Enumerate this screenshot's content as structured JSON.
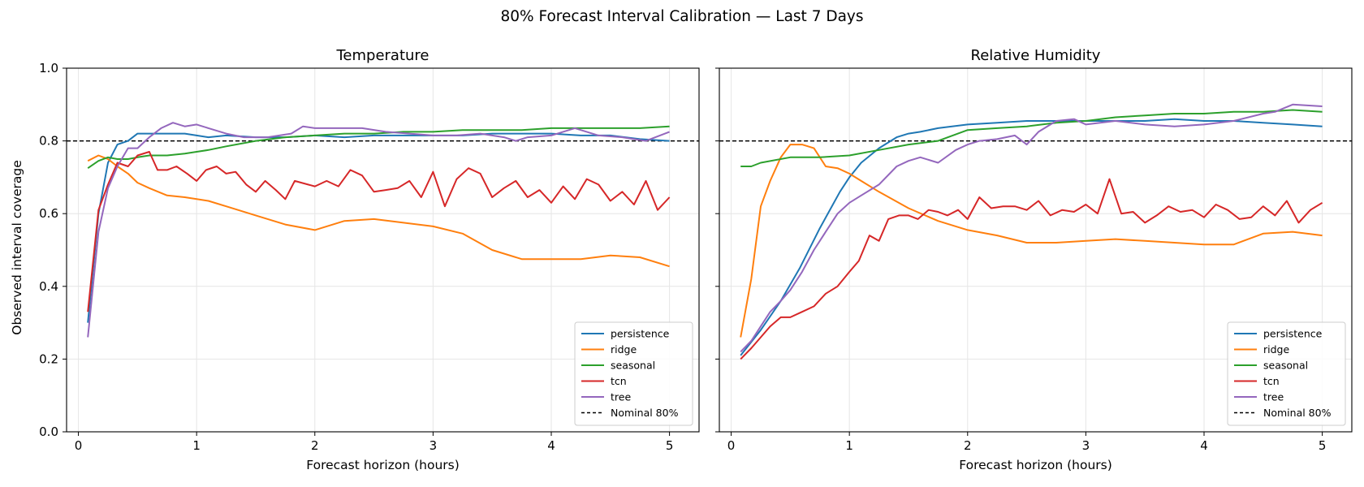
{
  "figure": {
    "suptitle": "80% Forecast Interval Calibration — Last 7 Days"
  },
  "colors": {
    "persistence": "#1f77b4",
    "ridge": "#ff7f0e",
    "seasonal": "#2ca02c",
    "tcn": "#d62728",
    "tree": "#9467bd",
    "nominal": "#000000"
  },
  "chart_data": [
    {
      "type": "line",
      "title": "Temperature",
      "xlabel": "Forecast horizon (hours)",
      "ylabel": "Observed interval coverage",
      "xlim": [
        -0.1,
        5.25
      ],
      "ylim": [
        0.0,
        1.0
      ],
      "xticks": [
        0,
        1,
        2,
        3,
        4,
        5
      ],
      "xtick_labels": [
        "0",
        "1",
        "2",
        "3",
        "4",
        "5"
      ],
      "yticks": [
        0.0,
        0.2,
        0.4,
        0.6,
        0.8,
        1.0
      ],
      "ytick_labels": [
        "0.0",
        "0.2",
        "0.4",
        "0.6",
        "0.8",
        "1.0"
      ],
      "grid": true,
      "legend_position": "lower-right",
      "reference_line": {
        "name": "Nominal 80%",
        "y": 0.8,
        "style": "dashed"
      },
      "series": [
        {
          "name": "persistence",
          "color": "#1f77b4",
          "x": [
            0.08,
            0.17,
            0.25,
            0.33,
            0.42,
            0.5,
            0.6,
            0.75,
            0.9,
            1.0,
            1.1,
            1.25,
            1.5,
            1.75,
            2.0,
            2.25,
            2.5,
            2.75,
            3.0,
            3.25,
            3.5,
            3.75,
            4.0,
            4.25,
            4.5,
            4.75,
            5.0
          ],
          "y": [
            0.3,
            0.6,
            0.74,
            0.79,
            0.8,
            0.82,
            0.82,
            0.82,
            0.82,
            0.815,
            0.81,
            0.815,
            0.81,
            0.81,
            0.815,
            0.81,
            0.815,
            0.815,
            0.815,
            0.815,
            0.82,
            0.82,
            0.82,
            0.815,
            0.815,
            0.805,
            0.8
          ]
        },
        {
          "name": "ridge",
          "color": "#ff7f0e",
          "x": [
            0.08,
            0.17,
            0.25,
            0.33,
            0.42,
            0.5,
            0.6,
            0.75,
            0.9,
            1.0,
            1.1,
            1.25,
            1.5,
            1.75,
            2.0,
            2.25,
            2.5,
            2.75,
            3.0,
            3.25,
            3.5,
            3.75,
            4.0,
            4.25,
            4.5,
            4.75,
            5.0
          ],
          "y": [
            0.745,
            0.76,
            0.75,
            0.73,
            0.71,
            0.685,
            0.67,
            0.65,
            0.645,
            0.64,
            0.635,
            0.62,
            0.595,
            0.57,
            0.555,
            0.58,
            0.585,
            0.575,
            0.565,
            0.545,
            0.5,
            0.475,
            0.475,
            0.475,
            0.485,
            0.48,
            0.455
          ]
        },
        {
          "name": "seasonal",
          "color": "#2ca02c",
          "x": [
            0.08,
            0.17,
            0.25,
            0.33,
            0.42,
            0.5,
            0.6,
            0.75,
            0.9,
            1.0,
            1.1,
            1.25,
            1.5,
            1.75,
            2.0,
            2.25,
            2.5,
            2.75,
            3.0,
            3.25,
            3.5,
            3.75,
            4.0,
            4.25,
            4.5,
            4.75,
            5.0
          ],
          "y": [
            0.725,
            0.745,
            0.755,
            0.75,
            0.75,
            0.755,
            0.76,
            0.76,
            0.765,
            0.77,
            0.775,
            0.785,
            0.8,
            0.81,
            0.815,
            0.82,
            0.82,
            0.825,
            0.825,
            0.83,
            0.83,
            0.83,
            0.835,
            0.835,
            0.835,
            0.835,
            0.84
          ]
        },
        {
          "name": "tcn",
          "color": "#d62728",
          "x": [
            0.08,
            0.17,
            0.25,
            0.33,
            0.42,
            0.5,
            0.6,
            0.67,
            0.75,
            0.83,
            0.92,
            1.0,
            1.08,
            1.17,
            1.25,
            1.33,
            1.42,
            1.5,
            1.58,
            1.67,
            1.75,
            1.83,
            2.0,
            2.1,
            2.2,
            2.3,
            2.4,
            2.5,
            2.6,
            2.7,
            2.8,
            2.9,
            3.0,
            3.1,
            3.2,
            3.3,
            3.4,
            3.5,
            3.6,
            3.7,
            3.8,
            3.9,
            4.0,
            4.1,
            4.2,
            4.3,
            4.4,
            4.5,
            4.6,
            4.7,
            4.8,
            4.9,
            5.0
          ],
          "y": [
            0.33,
            0.61,
            0.68,
            0.74,
            0.73,
            0.76,
            0.77,
            0.72,
            0.72,
            0.73,
            0.71,
            0.69,
            0.72,
            0.73,
            0.71,
            0.715,
            0.68,
            0.66,
            0.69,
            0.665,
            0.64,
            0.69,
            0.675,
            0.69,
            0.675,
            0.72,
            0.705,
            0.66,
            0.665,
            0.67,
            0.69,
            0.645,
            0.715,
            0.62,
            0.695,
            0.725,
            0.71,
            0.645,
            0.67,
            0.69,
            0.645,
            0.665,
            0.63,
            0.675,
            0.64,
            0.695,
            0.68,
            0.635,
            0.66,
            0.625,
            0.69,
            0.61,
            0.645
          ]
        },
        {
          "name": "tree",
          "color": "#9467bd",
          "x": [
            0.08,
            0.17,
            0.25,
            0.33,
            0.42,
            0.5,
            0.6,
            0.7,
            0.8,
            0.9,
            1.0,
            1.1,
            1.25,
            1.4,
            1.6,
            1.8,
            1.9,
            2.0,
            2.2,
            2.4,
            2.6,
            2.8,
            3.0,
            3.2,
            3.4,
            3.6,
            3.7,
            3.8,
            4.0,
            4.2,
            4.4,
            4.6,
            4.8,
            5.0
          ],
          "y": [
            0.26,
            0.55,
            0.67,
            0.73,
            0.78,
            0.78,
            0.81,
            0.835,
            0.85,
            0.84,
            0.845,
            0.835,
            0.82,
            0.81,
            0.81,
            0.82,
            0.84,
            0.835,
            0.835,
            0.835,
            0.825,
            0.82,
            0.815,
            0.815,
            0.82,
            0.81,
            0.8,
            0.81,
            0.815,
            0.835,
            0.815,
            0.81,
            0.8,
            0.825
          ]
        }
      ]
    },
    {
      "type": "line",
      "title": "Relative Humidity",
      "xlabel": "Forecast horizon (hours)",
      "ylabel": "",
      "xlim": [
        -0.1,
        5.25
      ],
      "ylim": [
        0.0,
        1.0
      ],
      "xticks": [
        0,
        1,
        2,
        3,
        4,
        5
      ],
      "xtick_labels": [
        "0",
        "1",
        "2",
        "3",
        "4",
        "5"
      ],
      "yticks": [
        0.0,
        0.2,
        0.4,
        0.6,
        0.8,
        1.0
      ],
      "ytick_labels": [],
      "grid": true,
      "legend_position": "lower-right",
      "reference_line": {
        "name": "Nominal 80%",
        "y": 0.8,
        "style": "dashed"
      },
      "series": [
        {
          "name": "persistence",
          "color": "#1f77b4",
          "x": [
            0.08,
            0.25,
            0.42,
            0.58,
            0.75,
            0.92,
            1.0,
            1.1,
            1.25,
            1.4,
            1.5,
            1.6,
            1.75,
            2.0,
            2.25,
            2.5,
            2.75,
            3.0,
            3.25,
            3.5,
            3.75,
            4.0,
            4.25,
            4.5,
            4.75,
            5.0
          ],
          "y": [
            0.21,
            0.28,
            0.36,
            0.45,
            0.56,
            0.66,
            0.7,
            0.74,
            0.78,
            0.81,
            0.82,
            0.825,
            0.835,
            0.845,
            0.85,
            0.855,
            0.855,
            0.855,
            0.855,
            0.855,
            0.86,
            0.855,
            0.855,
            0.85,
            0.845,
            0.84
          ]
        },
        {
          "name": "ridge",
          "color": "#ff7f0e",
          "x": [
            0.08,
            0.17,
            0.25,
            0.33,
            0.42,
            0.5,
            0.6,
            0.7,
            0.8,
            0.9,
            1.0,
            1.1,
            1.25,
            1.5,
            1.75,
            2.0,
            2.25,
            2.5,
            2.75,
            3.0,
            3.25,
            3.5,
            3.75,
            4.0,
            4.25,
            4.5,
            4.75,
            5.0
          ],
          "y": [
            0.26,
            0.42,
            0.62,
            0.69,
            0.755,
            0.79,
            0.79,
            0.78,
            0.73,
            0.725,
            0.71,
            0.69,
            0.66,
            0.615,
            0.58,
            0.555,
            0.54,
            0.52,
            0.52,
            0.525,
            0.53,
            0.525,
            0.52,
            0.515,
            0.515,
            0.545,
            0.55,
            0.54
          ]
        },
        {
          "name": "seasonal",
          "color": "#2ca02c",
          "x": [
            0.08,
            0.17,
            0.25,
            0.5,
            0.75,
            1.0,
            1.25,
            1.5,
            1.75,
            2.0,
            2.25,
            2.5,
            2.75,
            3.0,
            3.25,
            3.5,
            3.75,
            4.0,
            4.25,
            4.5,
            4.75,
            5.0
          ],
          "y": [
            0.73,
            0.73,
            0.74,
            0.755,
            0.755,
            0.76,
            0.775,
            0.79,
            0.8,
            0.83,
            0.835,
            0.84,
            0.85,
            0.855,
            0.865,
            0.87,
            0.875,
            0.875,
            0.88,
            0.88,
            0.885,
            0.88
          ]
        },
        {
          "name": "tcn",
          "color": "#d62728",
          "x": [
            0.08,
            0.17,
            0.25,
            0.33,
            0.42,
            0.5,
            0.6,
            0.7,
            0.8,
            0.9,
            1.0,
            1.08,
            1.17,
            1.25,
            1.33,
            1.42,
            1.5,
            1.58,
            1.67,
            1.75,
            1.83,
            1.92,
            2.0,
            2.1,
            2.2,
            2.3,
            2.4,
            2.5,
            2.6,
            2.7,
            2.8,
            2.9,
            3.0,
            3.1,
            3.2,
            3.3,
            3.4,
            3.5,
            3.6,
            3.7,
            3.8,
            3.9,
            4.0,
            4.1,
            4.2,
            4.3,
            4.4,
            4.5,
            4.6,
            4.7,
            4.8,
            4.9,
            5.0
          ],
          "y": [
            0.2,
            0.23,
            0.26,
            0.29,
            0.315,
            0.315,
            0.33,
            0.345,
            0.38,
            0.4,
            0.44,
            0.47,
            0.54,
            0.525,
            0.585,
            0.595,
            0.595,
            0.585,
            0.61,
            0.605,
            0.595,
            0.61,
            0.585,
            0.645,
            0.615,
            0.62,
            0.62,
            0.61,
            0.635,
            0.595,
            0.61,
            0.605,
            0.625,
            0.6,
            0.695,
            0.6,
            0.605,
            0.575,
            0.595,
            0.62,
            0.605,
            0.61,
            0.59,
            0.625,
            0.61,
            0.585,
            0.59,
            0.62,
            0.595,
            0.635,
            0.575,
            0.61,
            0.63
          ]
        },
        {
          "name": "tree",
          "color": "#9467bd",
          "x": [
            0.08,
            0.17,
            0.25,
            0.33,
            0.42,
            0.5,
            0.6,
            0.7,
            0.8,
            0.9,
            1.0,
            1.1,
            1.25,
            1.4,
            1.5,
            1.6,
            1.75,
            1.9,
            2.0,
            2.1,
            2.25,
            2.4,
            2.5,
            2.6,
            2.75,
            2.9,
            3.0,
            3.25,
            3.5,
            3.75,
            4.0,
            4.25,
            4.5,
            4.6,
            4.75,
            5.0
          ],
          "y": [
            0.22,
            0.25,
            0.29,
            0.33,
            0.36,
            0.39,
            0.44,
            0.5,
            0.55,
            0.6,
            0.63,
            0.65,
            0.68,
            0.73,
            0.745,
            0.755,
            0.74,
            0.775,
            0.79,
            0.8,
            0.805,
            0.815,
            0.79,
            0.825,
            0.855,
            0.86,
            0.845,
            0.855,
            0.845,
            0.84,
            0.845,
            0.855,
            0.875,
            0.88,
            0.9,
            0.895
          ]
        }
      ]
    }
  ]
}
